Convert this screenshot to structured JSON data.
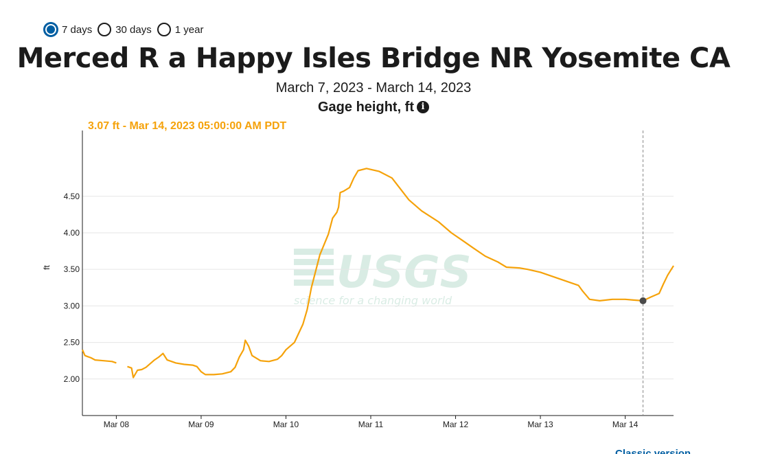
{
  "period_options": [
    {
      "label": "7 days",
      "selected": true
    },
    {
      "label": "30 days",
      "selected": false
    },
    {
      "label": "1 year",
      "selected": false
    }
  ],
  "site_title": "Merced R a Happy Isles Bridge NR Yosemite CA",
  "date_range": "March 7, 2023 - March 14, 2023",
  "parameter": "Gage height, ft",
  "info_icon": "info-icon",
  "tooltip": "3.07 ft - Mar 14, 2023 05:00:00 AM PDT",
  "watermark": {
    "brand": "USGS",
    "tagline": "science for a changing world"
  },
  "colors": {
    "series": "#f5a20a",
    "selected_radio": "#005ea2",
    "cursor_point": "#4a4a4a"
  },
  "chart_data": {
    "type": "line",
    "title": "Merced R a Happy Isles Bridge NR Yosemite CA",
    "subtitle": "March 7, 2023 - March 14, 2023",
    "ylabel": "ft",
    "xlim": [
      7.6,
      14.57
    ],
    "ylim": [
      1.5,
      5.4
    ],
    "yticks": [
      2.0,
      2.5,
      3.0,
      3.5,
      4.0,
      4.5
    ],
    "ytick_labels": [
      "2.00",
      "2.50",
      "3.00",
      "3.50",
      "4.00",
      "4.50"
    ],
    "xticks": [
      8,
      9,
      10,
      11,
      12,
      13,
      14
    ],
    "xtick_labels": [
      "Mar 08",
      "Mar 09",
      "Mar 10",
      "Mar 11",
      "Mar 12",
      "Mar 13",
      "Mar 14"
    ],
    "grid": true,
    "cursor": {
      "x": 14.21,
      "y": 3.07
    },
    "series": [
      {
        "segments": [
          [
            [
              7.6,
              2.4
            ],
            [
              7.63,
              2.32
            ],
            [
              7.7,
              2.29
            ],
            [
              7.75,
              2.26
            ],
            [
              7.85,
              2.25
            ],
            [
              7.95,
              2.24
            ],
            [
              8.0,
              2.22
            ]
          ],
          [
            [
              8.13,
              2.17
            ],
            [
              8.18,
              2.15
            ],
            [
              8.2,
              2.02
            ],
            [
              8.25,
              2.12
            ],
            [
              8.3,
              2.13
            ],
            [
              8.35,
              2.16
            ],
            [
              8.45,
              2.26
            ],
            [
              8.5,
              2.3
            ],
            [
              8.55,
              2.35
            ],
            [
              8.6,
              2.26
            ],
            [
              8.7,
              2.22
            ],
            [
              8.8,
              2.2
            ],
            [
              8.9,
              2.19
            ],
            [
              8.95,
              2.17
            ],
            [
              9.0,
              2.1
            ],
            [
              9.05,
              2.06
            ],
            [
              9.15,
              2.06
            ],
            [
              9.25,
              2.07
            ],
            [
              9.35,
              2.1
            ],
            [
              9.4,
              2.16
            ],
            [
              9.45,
              2.3
            ],
            [
              9.5,
              2.4
            ],
            [
              9.52,
              2.53
            ],
            [
              9.56,
              2.45
            ],
            [
              9.6,
              2.32
            ],
            [
              9.7,
              2.25
            ],
            [
              9.8,
              2.24
            ],
            [
              9.9,
              2.27
            ],
            [
              9.95,
              2.32
            ],
            [
              10.0,
              2.4
            ],
            [
              10.05,
              2.45
            ],
            [
              10.1,
              2.5
            ],
            [
              10.2,
              2.75
            ],
            [
              10.25,
              2.95
            ],
            [
              10.3,
              3.25
            ],
            [
              10.4,
              3.7
            ],
            [
              10.5,
              3.98
            ],
            [
              10.55,
              4.2
            ],
            [
              10.6,
              4.28
            ],
            [
              10.62,
              4.35
            ],
            [
              10.64,
              4.55
            ],
            [
              10.68,
              4.57
            ],
            [
              10.75,
              4.62
            ],
            [
              10.8,
              4.75
            ],
            [
              10.85,
              4.85
            ],
            [
              10.95,
              4.88
            ],
            [
              11.1,
              4.84
            ],
            [
              11.25,
              4.75
            ],
            [
              11.35,
              4.6
            ],
            [
              11.45,
              4.45
            ],
            [
              11.6,
              4.3
            ],
            [
              11.8,
              4.15
            ],
            [
              11.95,
              4.0
            ],
            [
              12.1,
              3.88
            ],
            [
              12.2,
              3.8
            ],
            [
              12.35,
              3.68
            ],
            [
              12.5,
              3.6
            ],
            [
              12.6,
              3.53
            ],
            [
              12.75,
              3.52
            ],
            [
              12.85,
              3.5
            ],
            [
              13.0,
              3.46
            ],
            [
              13.15,
              3.4
            ],
            [
              13.3,
              3.34
            ],
            [
              13.45,
              3.28
            ],
            [
              13.5,
              3.2
            ],
            [
              13.58,
              3.09
            ],
            [
              13.7,
              3.07
            ],
            [
              13.85,
              3.09
            ],
            [
              14.0,
              3.09
            ],
            [
              14.1,
              3.08
            ],
            [
              14.21,
              3.07
            ],
            [
              14.3,
              3.12
            ],
            [
              14.4,
              3.17
            ],
            [
              14.45,
              3.3
            ],
            [
              14.5,
              3.42
            ],
            [
              14.57,
              3.55
            ]
          ]
        ]
      }
    ]
  },
  "footer_link": "Classic version"
}
